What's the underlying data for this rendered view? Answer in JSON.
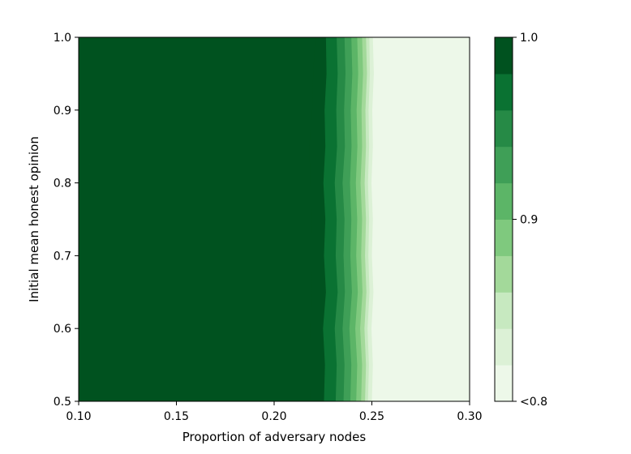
{
  "chart_data": {
    "type": "heatmap",
    "title": "",
    "xlabel": "Proportion of adversary nodes",
    "ylabel": "Initial mean honest opinion",
    "xlim": [
      0.1,
      0.3
    ],
    "ylim": [
      0.5,
      1.0
    ],
    "x_ticks": [
      0.1,
      0.15,
      0.2,
      0.25,
      0.3
    ],
    "x_tick_labels": [
      "0.10",
      "0.15",
      "0.20",
      "0.25",
      "0.30"
    ],
    "y_ticks": [
      0.5,
      0.6,
      0.7,
      0.8,
      0.9,
      1.0
    ],
    "y_tick_labels": [
      "0.5",
      "0.6",
      "0.7",
      "0.8",
      "0.9",
      "1.0"
    ],
    "colorbar": {
      "range": [
        0.8,
        1.0
      ],
      "tick_values": [
        0.8,
        0.9,
        1.0
      ],
      "tick_labels": [
        "<0.8",
        "0.9",
        "1.0"
      ],
      "levels": [
        0.8,
        0.82,
        0.84,
        0.86,
        0.88,
        0.9,
        0.92,
        0.94,
        0.96,
        0.98,
        1.0
      ],
      "colors": [
        "#edf8e9",
        "#dcf1d6",
        "#c7e9c0",
        "#a3d99a",
        "#7fc97e",
        "#5cb567",
        "#3f9f57",
        "#268a46",
        "#0a7232",
        "#00521f"
      ]
    },
    "contour_boundaries": {
      "y": [
        0.5,
        0.55,
        0.6,
        0.65,
        0.7,
        0.75,
        0.8,
        0.85,
        0.9,
        0.95,
        1.0
      ],
      "x": [
        [
          0.2185,
          0.219,
          0.2185,
          0.2195,
          0.2188,
          0.2193,
          0.2186,
          0.218,
          0.2195,
          0.22,
          0.221
        ],
        [
          0.2255,
          0.226,
          0.225,
          0.2265,
          0.2255,
          0.2262,
          0.2252,
          0.2262,
          0.2258,
          0.2268,
          0.2265
        ],
        [
          0.2315,
          0.232,
          0.231,
          0.2325,
          0.2315,
          0.232,
          0.231,
          0.2322,
          0.2318,
          0.2325,
          0.232
        ],
        [
          0.2355,
          0.236,
          0.235,
          0.2362,
          0.2355,
          0.236,
          0.235,
          0.2362,
          0.2358,
          0.2365,
          0.236
        ],
        [
          0.239,
          0.2395,
          0.2385,
          0.2398,
          0.239,
          0.2395,
          0.2388,
          0.2396,
          0.2392,
          0.24,
          0.2395
        ],
        [
          0.242,
          0.2425,
          0.2415,
          0.2428,
          0.242,
          0.2425,
          0.2418,
          0.2426,
          0.2422,
          0.243,
          0.2425
        ],
        [
          0.2445,
          0.245,
          0.244,
          0.2452,
          0.2445,
          0.245,
          0.2442,
          0.245,
          0.2447,
          0.2455,
          0.245
        ],
        [
          0.2465,
          0.247,
          0.2462,
          0.2472,
          0.2465,
          0.247,
          0.2463,
          0.247,
          0.2467,
          0.2475,
          0.247
        ],
        [
          0.248,
          0.2485,
          0.2478,
          0.2488,
          0.2482,
          0.2486,
          0.248,
          0.2486,
          0.2483,
          0.249,
          0.2487
        ],
        [
          0.25,
          0.2505,
          0.2498,
          0.2508,
          0.25,
          0.2505,
          0.2498,
          0.2505,
          0.2502,
          0.251,
          0.2505
        ]
      ]
    }
  }
}
